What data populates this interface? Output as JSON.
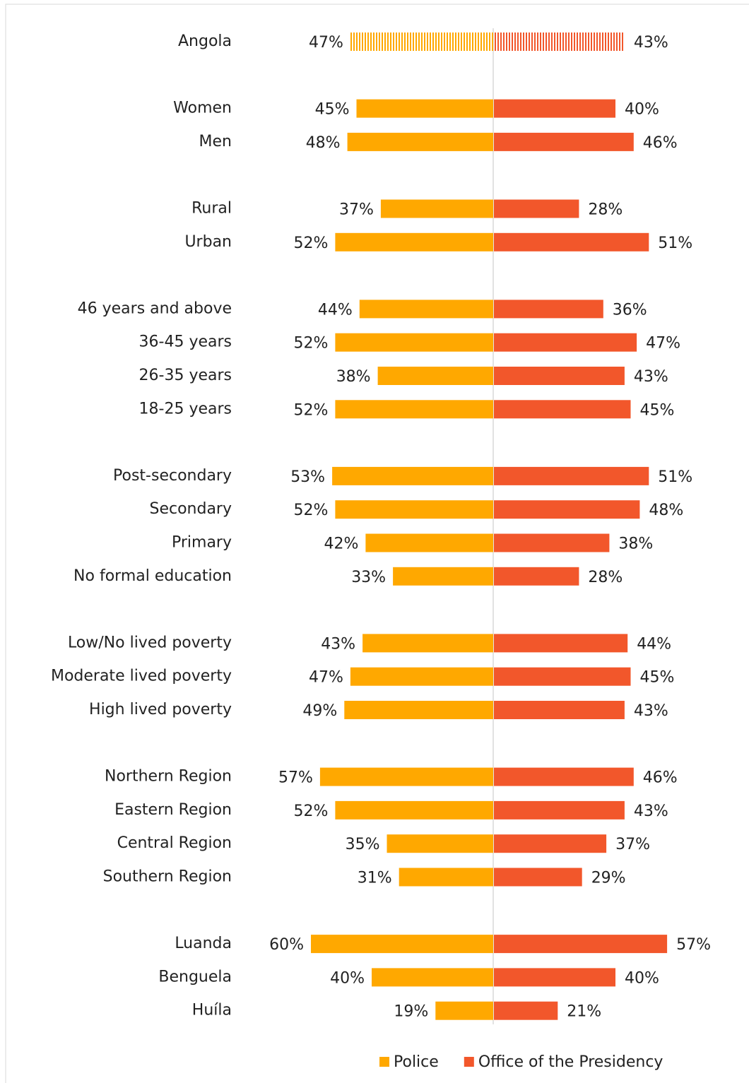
{
  "chart_data": {
    "type": "butterfly-bar",
    "categories": [
      "Angola",
      null,
      "Women",
      "Men",
      null,
      "Rural",
      "Urban",
      null,
      "46 years and above",
      "36-45 years",
      "26-35 years",
      "18-25 years",
      null,
      "Post-secondary",
      "Secondary",
      "Primary",
      "No formal education",
      null,
      "Low/No lived poverty",
      "Moderate lived poverty",
      "High lived poverty",
      null,
      "Northern Region",
      "Eastern Region",
      "Central Region",
      "Southern Region",
      null,
      "Luanda",
      "Benguela",
      "Huíla"
    ],
    "series": [
      {
        "name": "Police",
        "color": "#FFA800",
        "values": [
          47,
          null,
          45,
          48,
          null,
          37,
          52,
          null,
          44,
          52,
          38,
          52,
          null,
          53,
          52,
          42,
          33,
          null,
          43,
          47,
          49,
          null,
          57,
          52,
          35,
          31,
          null,
          60,
          40,
          19
        ],
        "value_labels": [
          "47%",
          null,
          "45%",
          "48%",
          null,
          "37%",
          "52%",
          null,
          "44%",
          "52%",
          "38%",
          "52%",
          null,
          "53%",
          "52%",
          "42%",
          "33%",
          null,
          "43%",
          "47%",
          "49%",
          null,
          "57%",
          "52%",
          "35%",
          "31%",
          null,
          "60%",
          "40%",
          "19%"
        ]
      },
      {
        "name": "Office of the Presidency",
        "color": "#F2572B",
        "values": [
          43,
          null,
          40,
          46,
          null,
          28,
          51,
          null,
          36,
          47,
          43,
          45,
          null,
          51,
          48,
          38,
          28,
          null,
          44,
          45,
          43,
          null,
          46,
          43,
          37,
          29,
          null,
          57,
          40,
          21
        ],
        "value_labels": [
          "43%",
          null,
          "40%",
          "46%",
          null,
          "28%",
          "51%",
          null,
          "36%",
          "47%",
          "43%",
          "45%",
          null,
          "51%",
          "48%",
          "38%",
          "28%",
          null,
          "44%",
          "45%",
          "43%",
          null,
          "46%",
          "43%",
          "37%",
          "29%",
          null,
          "57%",
          "40%",
          "21%"
        ]
      }
    ],
    "legend": "bottom-right"
  }
}
